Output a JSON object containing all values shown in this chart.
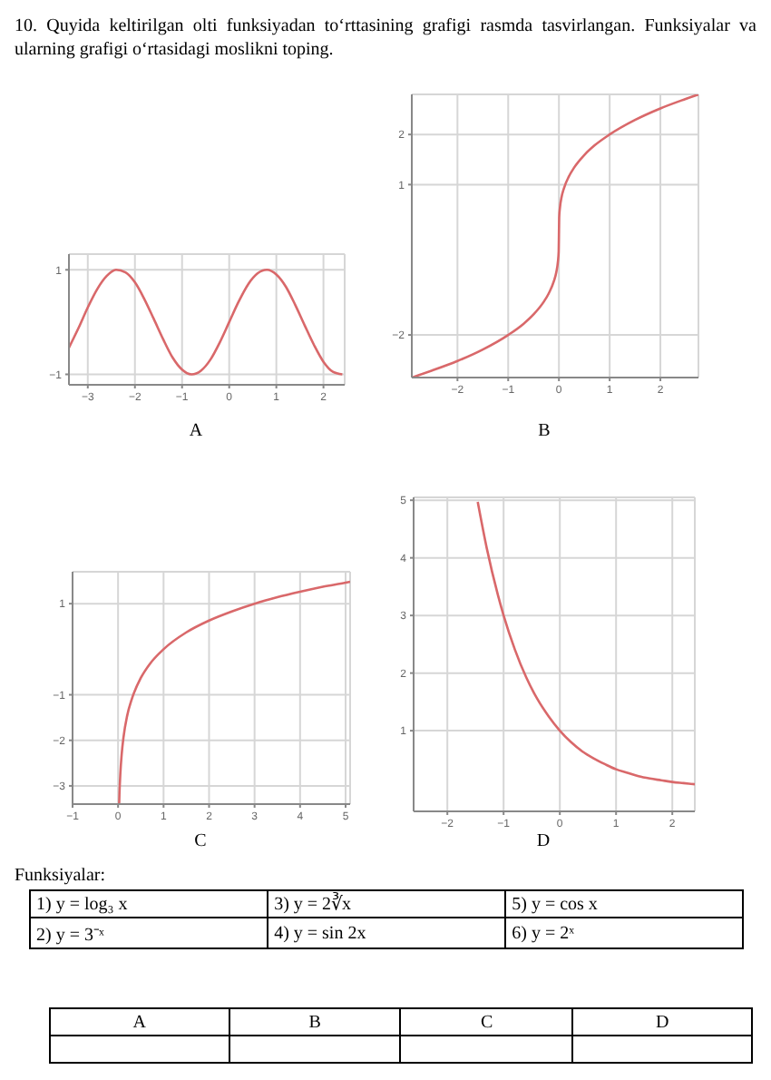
{
  "chart_data": [
    {
      "type": "other",
      "title": "10. Quyida keltirilgan olti funksiyadan to‘rttasining grafigi rasmda tasvirlangan. Funksiyalar va ularning grafigi o‘rtasidagi moslikni toping."
    },
    {
      "type": "line",
      "title": "A",
      "color": "#d9686a",
      "grid": true,
      "xlim": [
        -3.4,
        2.45
      ],
      "ylim": [
        -1.2,
        1.3
      ],
      "xticks": [
        -3,
        -2,
        -1,
        0,
        1,
        2
      ],
      "yticks": [
        -1,
        1
      ],
      "x": [
        -3.4,
        -3.2,
        -3.0,
        -2.8,
        -2.6,
        -2.4,
        -2.2,
        -2.0,
        -1.8,
        -1.6,
        -1.4,
        -1.2,
        -1.0,
        -0.8,
        -0.6,
        -0.4,
        -0.2,
        0,
        0.2,
        0.4,
        0.6,
        0.8,
        1.0,
        1.2,
        1.4,
        1.6,
        1.8,
        2.0,
        2.2,
        2.4
      ],
      "values": [
        -0.49,
        -0.12,
        0.28,
        0.63,
        0.88,
        1.0,
        0.95,
        0.76,
        0.44,
        0.06,
        -0.33,
        -0.68,
        -0.91,
        -1.0,
        -0.93,
        -0.72,
        -0.39,
        0,
        0.39,
        0.72,
        0.93,
        1.0,
        0.91,
        0.68,
        0.33,
        -0.06,
        -0.44,
        -0.76,
        -0.95,
        -1.0
      ]
    },
    {
      "type": "line",
      "title": "B",
      "color": "#d9686a",
      "grid": true,
      "xlim": [
        -2.9,
        2.75
      ],
      "ylim": [
        -2.85,
        2.8
      ],
      "xticks": [
        -2,
        -1,
        0,
        1,
        2
      ],
      "yticks": [
        -2,
        1,
        2
      ],
      "x": [
        -2.9,
        -2.5,
        -2,
        -1.5,
        -1,
        -0.7,
        -0.5,
        -0.3,
        -0.2,
        -0.1,
        -0.05,
        -0.02,
        -0.005,
        0,
        0.005,
        0.02,
        0.05,
        0.1,
        0.2,
        0.3,
        0.5,
        0.7,
        1,
        1.5,
        2,
        2.5,
        2.75
      ],
      "values": [
        -2.85,
        -2.71,
        -2.52,
        -2.29,
        -2,
        -1.78,
        -1.59,
        -1.34,
        -1.17,
        -0.93,
        -0.74,
        -0.54,
        -0.34,
        0,
        0.34,
        0.54,
        0.74,
        0.93,
        1.17,
        1.34,
        1.59,
        1.78,
        2,
        2.29,
        2.52,
        2.71,
        2.8
      ]
    },
    {
      "type": "line",
      "title": "C",
      "color": "#d9686a",
      "grid": true,
      "xlim": [
        -1,
        5.1
      ],
      "ylim": [
        -3.4,
        1.7
      ],
      "xticks": [
        -1,
        0,
        1,
        2,
        3,
        4,
        5
      ],
      "yticks": [
        -3,
        -2,
        -1,
        1
      ],
      "x": [
        0.024,
        0.03,
        0.05,
        0.08,
        0.12,
        0.2,
        0.3,
        0.5,
        0.7,
        1,
        1.5,
        2,
        2.5,
        3,
        3.5,
        4,
        4.5,
        5,
        5.1
      ],
      "values": [
        -3.4,
        -3.19,
        -2.73,
        -2.3,
        -1.93,
        -1.46,
        -1.1,
        -0.63,
        -0.32,
        0,
        0.37,
        0.63,
        0.83,
        1,
        1.14,
        1.26,
        1.37,
        1.46,
        1.48
      ]
    },
    {
      "type": "line",
      "title": "D",
      "color": "#d9686a",
      "grid": true,
      "xlim": [
        -2.6,
        2.4
      ],
      "ylim": [
        -0.4,
        5.05
      ],
      "xticks": [
        -2,
        -1,
        0,
        1,
        2
      ],
      "yticks": [
        1,
        2,
        3,
        4,
        5
      ],
      "x": [
        -1.46,
        -1.3,
        -1.1,
        -1,
        -0.8,
        -0.6,
        -0.4,
        -0.2,
        0,
        0.2,
        0.4,
        0.6,
        0.8,
        1,
        1.2,
        1.4,
        1.6,
        1.8,
        2,
        2.2,
        2.4
      ],
      "values": [
        4.97,
        4.17,
        3.35,
        3,
        2.41,
        1.93,
        1.55,
        1.25,
        1,
        0.8,
        0.64,
        0.52,
        0.42,
        0.33,
        0.27,
        0.21,
        0.17,
        0.14,
        0.11,
        0.09,
        0.07
      ]
    },
    {
      "type": "other",
      "title": "Funksiyalar:",
      "annotations": [
        "1) y = log₃ x",
        "2) y = 3⁻ˣ",
        "3) y = 2∛x",
        "4) y = sin 2x",
        "5) y = cos x",
        "6) y = 2ˣ"
      ]
    },
    {
      "type": "other",
      "annotations": [
        "A",
        "B",
        "C",
        "D"
      ]
    }
  ]
}
